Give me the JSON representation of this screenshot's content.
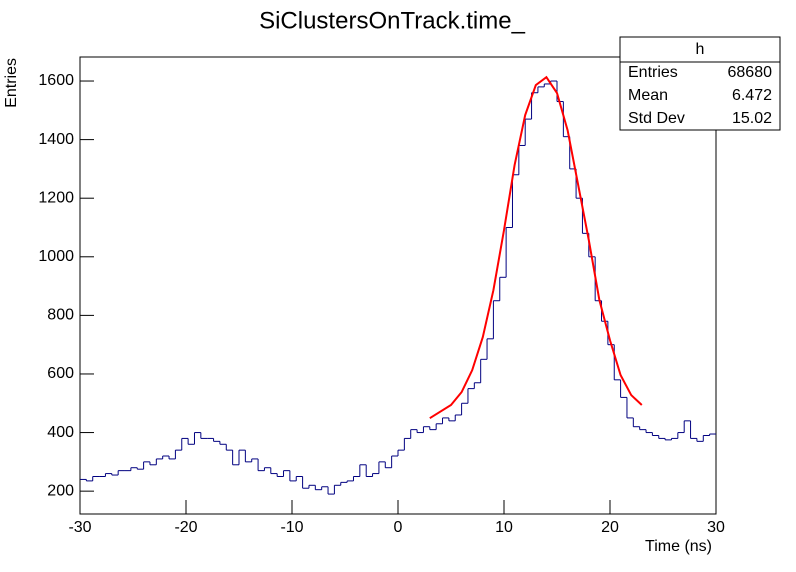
{
  "chart_data": {
    "type": "histogram",
    "title": "SiClustersOnTrack.time_",
    "x_label": "Time (ns)",
    "y_label": "Entries",
    "color": "#000080",
    "bins": [
      -30,
      -29.4,
      -28.8,
      -28.2,
      -27.6,
      -27,
      -26.4,
      -25.8,
      -25.2,
      -24.6,
      -24,
      -23.4,
      -22.8,
      -22.2,
      -21.6,
      -21,
      -20.4,
      -19.8,
      -19.2,
      -18.6,
      -18,
      -17.4,
      -16.8,
      -16.2,
      -15.6,
      -15,
      -14.4,
      -13.8,
      -13.2,
      -12.6,
      -12,
      -11.4,
      -10.8,
      -10.2,
      -9.6,
      -9,
      -8.4,
      -7.8,
      -7.2,
      -6.6,
      -6,
      -5.4,
      -4.8,
      -4.2,
      -3.6,
      -3,
      -2.4,
      -1.8,
      -1.2,
      -0.6,
      0,
      0.6,
      1.2,
      1.8,
      2.4,
      3,
      3.6,
      4.2,
      4.8,
      5.4,
      6,
      6.6,
      7.2,
      7.8,
      8.4,
      9,
      9.6,
      10.2,
      10.8,
      11.4,
      12,
      12.6,
      13.2,
      13.8,
      14.4,
      15,
      15.6,
      16.2,
      16.8,
      17.4,
      18,
      18.6,
      19.2,
      19.8,
      20.4,
      21,
      21.6,
      22.2,
      22.8,
      23.4,
      24,
      24.6,
      25.2,
      25.8,
      26.4,
      27,
      27.6,
      28.2,
      28.8,
      29.4,
      30
    ],
    "counts": [
      240,
      235,
      250,
      250,
      260,
      255,
      270,
      270,
      280,
      275,
      300,
      290,
      310,
      320,
      310,
      340,
      380,
      360,
      400,
      380,
      380,
      370,
      360,
      340,
      290,
      340,
      300,
      310,
      270,
      280,
      260,
      250,
      270,
      235,
      250,
      210,
      220,
      205,
      215,
      190,
      220,
      230,
      235,
      250,
      290,
      250,
      260,
      300,
      280,
      320,
      340,
      380,
      410,
      400,
      420,
      410,
      430,
      450,
      440,
      460,
      500,
      550,
      570,
      650,
      720,
      850,
      930,
      1100,
      1280,
      1380,
      1470,
      1560,
      1580,
      1590,
      1600,
      1530,
      1410,
      1300,
      1200,
      1080,
      1000,
      850,
      780,
      700,
      580,
      520,
      450,
      420,
      410,
      400,
      390,
      380,
      375,
      380,
      400,
      440,
      380,
      370,
      390,
      395
    ],
    "fit": {
      "color": "#ff0000",
      "x": [
        3,
        5,
        6,
        7,
        8,
        9,
        10,
        11,
        12,
        13,
        14,
        15,
        16,
        17,
        18,
        19,
        20,
        21,
        22,
        23
      ],
      "values": [
        449,
        494,
        538,
        613,
        726,
        886,
        1091,
        1313,
        1484,
        1586,
        1613,
        1559,
        1432,
        1245,
        1057,
        852,
        715,
        596,
        528,
        494
      ]
    },
    "xlim": [
      -30,
      30
    ],
    "xticks": [
      -30,
      -20,
      -10,
      0,
      10,
      20,
      30
    ],
    "ylim": [
      122,
      1682
    ],
    "yticks": [
      200,
      400,
      600,
      800,
      1000,
      1200,
      1400,
      1600
    ],
    "stats": {
      "title": "h",
      "rows": [
        {
          "label": "Entries",
          "value": 68680
        },
        {
          "label": "Mean",
          "value": 6.472
        },
        {
          "label": "Std Dev",
          "value": 15.02
        }
      ]
    }
  }
}
